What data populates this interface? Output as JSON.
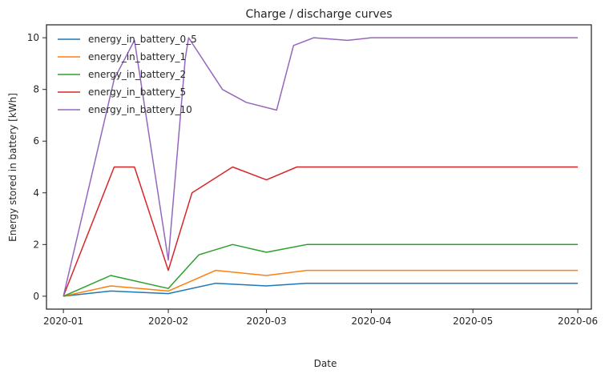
{
  "chart_data": {
    "type": "line",
    "title": "Charge / discharge curves",
    "xlabel": "Date",
    "ylabel": "Energy stored in battery [kWh]",
    "x_range": [
      "2019-12-27",
      "2020-06-05"
    ],
    "x_ticks": [
      "2020-01-01",
      "2020-02-01",
      "2020-03-01",
      "2020-04-01",
      "2020-05-01",
      "2020-06-01"
    ],
    "x_tick_labels": [
      "2020-01",
      "2020-02",
      "2020-03",
      "2020-04",
      "2020-05",
      "2020-06"
    ],
    "ylim": [
      -0.5,
      10.5
    ],
    "y_ticks": [
      0,
      2,
      4,
      6,
      8,
      10
    ],
    "grid": false,
    "legend_position": "top-left",
    "series": [
      {
        "name": "energy_in_battery_0_5",
        "color": "#1f77b4",
        "points": [
          [
            "2020-01-01",
            0.0
          ],
          [
            "2020-01-15",
            0.2
          ],
          [
            "2020-02-01",
            0.1
          ],
          [
            "2020-02-15",
            0.5
          ],
          [
            "2020-03-01",
            0.4
          ],
          [
            "2020-03-13",
            0.5
          ],
          [
            "2020-03-15",
            0.5
          ],
          [
            "2020-04-01",
            0.5
          ],
          [
            "2020-04-15",
            0.5
          ],
          [
            "2020-05-01",
            0.5
          ],
          [
            "2020-05-15",
            0.5
          ],
          [
            "2020-06-01",
            0.5
          ]
        ]
      },
      {
        "name": "energy_in_battery_1",
        "color": "#ff7f0e",
        "points": [
          [
            "2020-01-01",
            0.0
          ],
          [
            "2020-01-15",
            0.4
          ],
          [
            "2020-02-01",
            0.2
          ],
          [
            "2020-02-15",
            1.0
          ],
          [
            "2020-03-01",
            0.8
          ],
          [
            "2020-03-13",
            1.0
          ],
          [
            "2020-03-15",
            1.0
          ],
          [
            "2020-04-01",
            1.0
          ],
          [
            "2020-04-15",
            1.0
          ],
          [
            "2020-05-01",
            1.0
          ],
          [
            "2020-05-15",
            1.0
          ],
          [
            "2020-06-01",
            1.0
          ]
        ]
      },
      {
        "name": "energy_in_battery_2",
        "color": "#2ca02c",
        "points": [
          [
            "2020-01-01",
            0.0
          ],
          [
            "2020-01-15",
            0.8
          ],
          [
            "2020-02-01",
            0.3
          ],
          [
            "2020-02-10",
            1.6
          ],
          [
            "2020-02-20",
            2.0
          ],
          [
            "2020-03-01",
            1.7
          ],
          [
            "2020-03-13",
            2.0
          ],
          [
            "2020-03-15",
            2.0
          ],
          [
            "2020-04-01",
            2.0
          ],
          [
            "2020-04-15",
            2.0
          ],
          [
            "2020-05-01",
            2.0
          ],
          [
            "2020-05-15",
            2.0
          ],
          [
            "2020-06-01",
            2.0
          ]
        ]
      },
      {
        "name": "energy_in_battery_5",
        "color": "#d62728",
        "points": [
          [
            "2020-01-01",
            0.0
          ],
          [
            "2020-01-16",
            5.0
          ],
          [
            "2020-01-22",
            5.0
          ],
          [
            "2020-02-01",
            1.0
          ],
          [
            "2020-02-08",
            4.0
          ],
          [
            "2020-02-20",
            5.0
          ],
          [
            "2020-03-01",
            4.5
          ],
          [
            "2020-03-10",
            5.0
          ],
          [
            "2020-03-15",
            5.0
          ],
          [
            "2020-04-01",
            5.0
          ],
          [
            "2020-04-15",
            5.0
          ],
          [
            "2020-05-01",
            5.0
          ],
          [
            "2020-05-15",
            5.0
          ],
          [
            "2020-06-01",
            5.0
          ]
        ]
      },
      {
        "name": "energy_in_battery_10",
        "color": "#9467bd",
        "points": [
          [
            "2020-01-01",
            0.0
          ],
          [
            "2020-01-16",
            8.4
          ],
          [
            "2020-01-22",
            9.9
          ],
          [
            "2020-02-01",
            1.4
          ],
          [
            "2020-02-06",
            9.2
          ],
          [
            "2020-02-07",
            10.0
          ],
          [
            "2020-02-17",
            8.0
          ],
          [
            "2020-02-24",
            7.5
          ],
          [
            "2020-03-04",
            7.2
          ],
          [
            "2020-03-09",
            9.7
          ],
          [
            "2020-03-15",
            10.0
          ],
          [
            "2020-03-25",
            9.9
          ],
          [
            "2020-04-01",
            10.0
          ],
          [
            "2020-04-15",
            10.0
          ],
          [
            "2020-05-01",
            10.0
          ],
          [
            "2020-05-15",
            10.0
          ],
          [
            "2020-06-01",
            10.0
          ]
        ]
      }
    ]
  }
}
